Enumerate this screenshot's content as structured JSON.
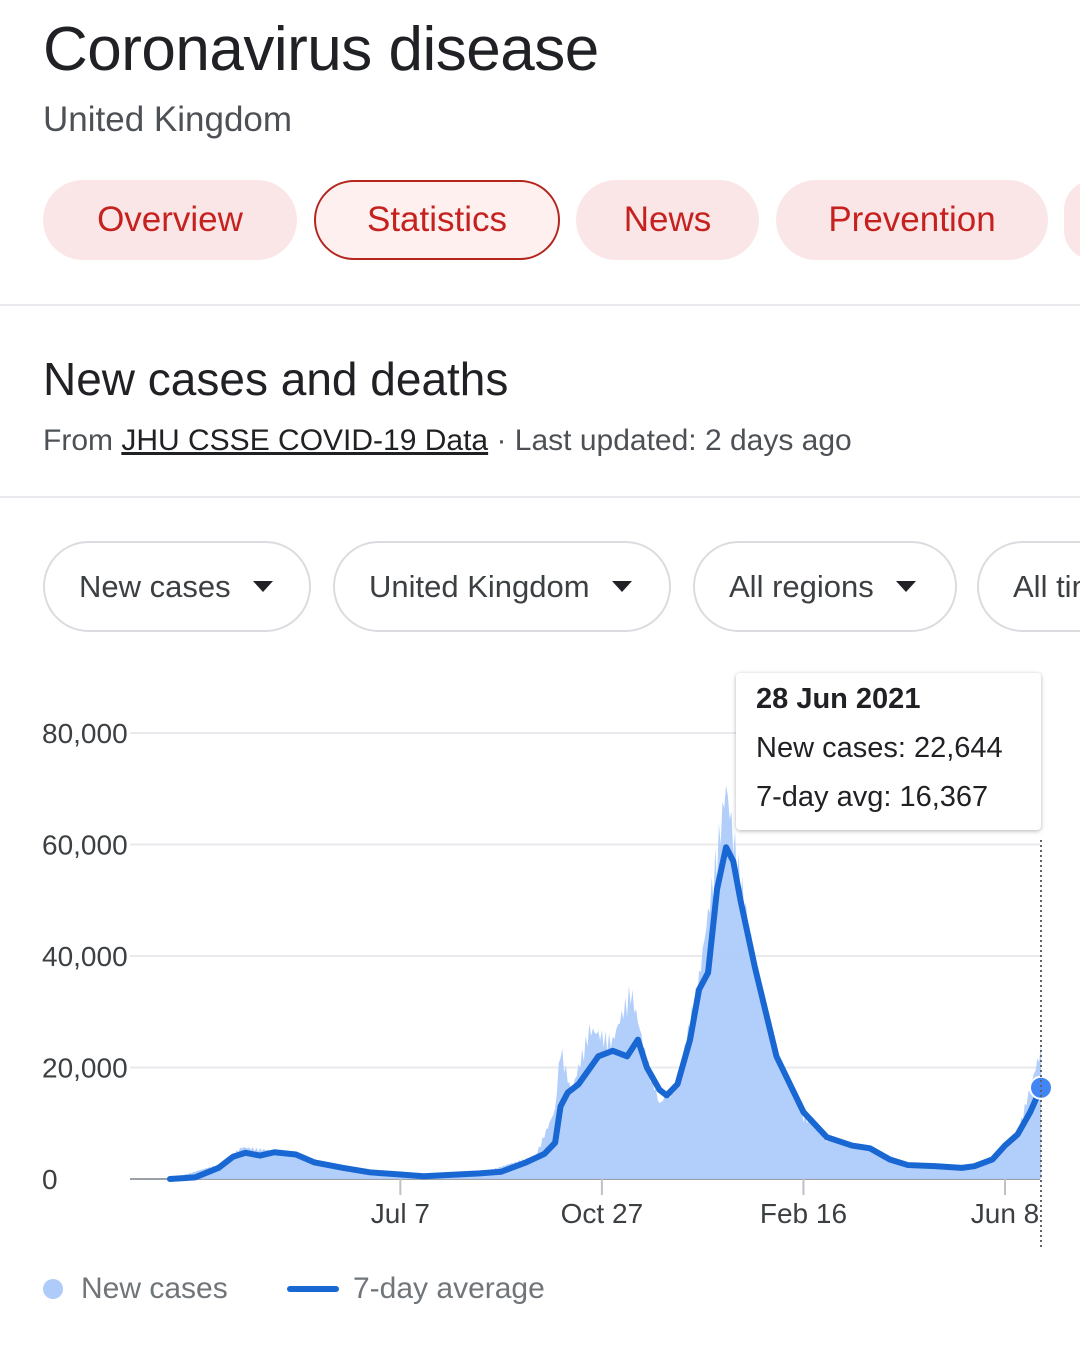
{
  "header": {
    "title": "Coronavirus disease",
    "subtitle": "United Kingdom"
  },
  "tabs": [
    {
      "label": "Overview"
    },
    {
      "label": "Statistics",
      "active": true
    },
    {
      "label": "News"
    },
    {
      "label": "Prevention"
    }
  ],
  "section": {
    "title": "New cases and deaths",
    "source_prefix": "From",
    "source_link": "JHU CSSE COVID-19 Data",
    "source_suffix": "· Last updated: 2 days ago"
  },
  "filters": [
    {
      "label": "New cases"
    },
    {
      "label": "United Kingdom"
    },
    {
      "label": "All regions"
    },
    {
      "label": "All time"
    }
  ],
  "tooltip": {
    "date": "28 Jun 2021",
    "new_cases": "New cases: 22,644",
    "avg": "7-day avg: 16,367"
  },
  "legend": {
    "new_cases": "New cases",
    "avg": "7-day average"
  },
  "colors": {
    "accent": "#c5221f",
    "bar": "#aecbfa",
    "line": "#1967d2",
    "highlight": "#4285f4"
  },
  "chart_data": {
    "type": "line",
    "ylim": [
      0,
      80000
    ],
    "yticks": [
      0,
      20000,
      40000,
      60000,
      80000
    ],
    "ytick_labels": [
      "0",
      "20,000",
      "40,000",
      "60,000",
      "80,000"
    ],
    "xticks": [
      {
        "date": "2020-07-07",
        "label": "Jul 7"
      },
      {
        "date": "2020-10-27",
        "label": "Oct 27"
      },
      {
        "date": "2021-02-16",
        "label": "Feb 16"
      },
      {
        "date": "2021-06-08",
        "label": "Jun 8"
      }
    ],
    "x_range": [
      "2020-03-01",
      "2021-06-28"
    ],
    "series": [
      {
        "name": "7-day average",
        "points": [
          [
            "2020-03-01",
            0
          ],
          [
            "2020-03-15",
            300
          ],
          [
            "2020-03-28",
            2000
          ],
          [
            "2020-04-05",
            4000
          ],
          [
            "2020-04-12",
            4700
          ],
          [
            "2020-04-20",
            4200
          ],
          [
            "2020-04-28",
            4800
          ],
          [
            "2020-05-10",
            4400
          ],
          [
            "2020-05-20",
            3000
          ],
          [
            "2020-06-05",
            2000
          ],
          [
            "2020-06-20",
            1200
          ],
          [
            "2020-07-07",
            800
          ],
          [
            "2020-07-20",
            500
          ],
          [
            "2020-08-01",
            700
          ],
          [
            "2020-08-20",
            1000
          ],
          [
            "2020-09-01",
            1300
          ],
          [
            "2020-09-15",
            3000
          ],
          [
            "2020-09-25",
            4500
          ],
          [
            "2020-10-01",
            6500
          ],
          [
            "2020-10-04",
            13000
          ],
          [
            "2020-10-08",
            15500
          ],
          [
            "2020-10-14",
            17000
          ],
          [
            "2020-10-25",
            22000
          ],
          [
            "2020-11-02",
            23000
          ],
          [
            "2020-11-10",
            22000
          ],
          [
            "2020-11-16",
            25000
          ],
          [
            "2020-11-21",
            20000
          ],
          [
            "2020-11-28",
            16000
          ],
          [
            "2020-12-02",
            15000
          ],
          [
            "2020-12-08",
            17000
          ],
          [
            "2020-12-15",
            25000
          ],
          [
            "2020-12-20",
            34000
          ],
          [
            "2020-12-25",
            37000
          ],
          [
            "2020-12-30",
            52000
          ],
          [
            "2021-01-04",
            59500
          ],
          [
            "2021-01-08",
            57000
          ],
          [
            "2021-01-12",
            50000
          ],
          [
            "2021-01-20",
            38000
          ],
          [
            "2021-02-01",
            22000
          ],
          [
            "2021-02-16",
            12000
          ],
          [
            "2021-03-01",
            7500
          ],
          [
            "2021-03-15",
            6000
          ],
          [
            "2021-03-25",
            5500
          ],
          [
            "2021-04-05",
            3500
          ],
          [
            "2021-04-15",
            2500
          ],
          [
            "2021-04-30",
            2300
          ],
          [
            "2021-05-15",
            2000
          ],
          [
            "2021-05-22",
            2300
          ],
          [
            "2021-06-01",
            3500
          ],
          [
            "2021-06-08",
            6000
          ],
          [
            "2021-06-15",
            8000
          ],
          [
            "2021-06-22",
            12000
          ],
          [
            "2021-06-28",
            16367
          ]
        ]
      },
      {
        "name": "New cases",
        "points": [
          [
            "2020-03-01",
            0
          ],
          [
            "2020-03-28",
            2500
          ],
          [
            "2020-04-10",
            5500
          ],
          [
            "2020-04-25",
            5000
          ],
          [
            "2020-05-10",
            4500
          ],
          [
            "2020-06-01",
            2000
          ],
          [
            "2020-07-07",
            800
          ],
          [
            "2020-08-20",
            1000
          ],
          [
            "2020-09-20",
            4000
          ],
          [
            "2020-10-01",
            12000
          ],
          [
            "2020-10-04",
            23000
          ],
          [
            "2020-10-10",
            15000
          ],
          [
            "2020-10-20",
            26000
          ],
          [
            "2020-11-02",
            24000
          ],
          [
            "2020-11-12",
            33000
          ],
          [
            "2020-11-20",
            22000
          ],
          [
            "2020-11-28",
            13000
          ],
          [
            "2020-12-08",
            17000
          ],
          [
            "2020-12-20",
            35000
          ],
          [
            "2020-12-29",
            55000
          ],
          [
            "2021-01-04",
            68000
          ],
          [
            "2021-01-10",
            56000
          ],
          [
            "2021-01-20",
            38000
          ],
          [
            "2021-02-01",
            22000
          ],
          [
            "2021-02-16",
            11000
          ],
          [
            "2021-03-01",
            7000
          ],
          [
            "2021-03-25",
            5500
          ],
          [
            "2021-04-15",
            2500
          ],
          [
            "2021-05-15",
            2000
          ],
          [
            "2021-06-01",
            3500
          ],
          [
            "2021-06-15",
            8000
          ],
          [
            "2021-06-28",
            22644
          ]
        ]
      }
    ],
    "highlight": {
      "date": "2021-06-28",
      "value": 16367
    }
  }
}
